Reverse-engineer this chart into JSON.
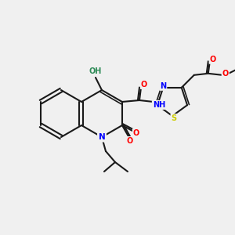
{
  "bg_color": "#f0f0f0",
  "bond_color": "#1a1a1a",
  "atom_colors": {
    "N": "#0000ff",
    "O": "#ff0000",
    "S": "#cccc00",
    "H_label": "#2e8b57",
    "NH": "#0000ff",
    "C": "#1a1a1a"
  },
  "figsize": [
    3.0,
    3.0
  ],
  "dpi": 100
}
